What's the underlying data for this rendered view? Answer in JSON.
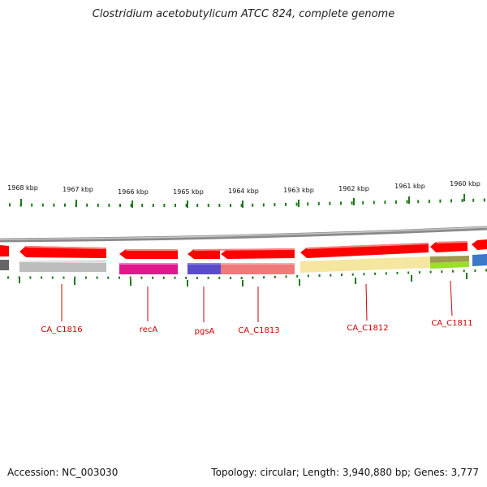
{
  "title": "Clostridium acetobutylicum ATCC 824, complete genome",
  "accession": "Accession: NC_003030",
  "summary": "Topology: circular; Length: 3,940,880 bp; Genes: 3,777",
  "colors": {
    "forward_strand": "#ff0000",
    "label": "#cc0000",
    "tick": "#1e7a1e",
    "backbone": "#888888"
  },
  "kbp_ticks": [
    "1968 kbp",
    "1967 kbp",
    "1966 kbp",
    "1965 kbp",
    "1964 kbp",
    "1963 kbp",
    "1962 kbp",
    "1961 kbp",
    "1960 kbp"
  ],
  "genes": [
    "CA_C1816",
    "recA",
    "pgsA",
    "CA_C1813",
    "CA_C1812",
    "CA_C1811"
  ]
}
